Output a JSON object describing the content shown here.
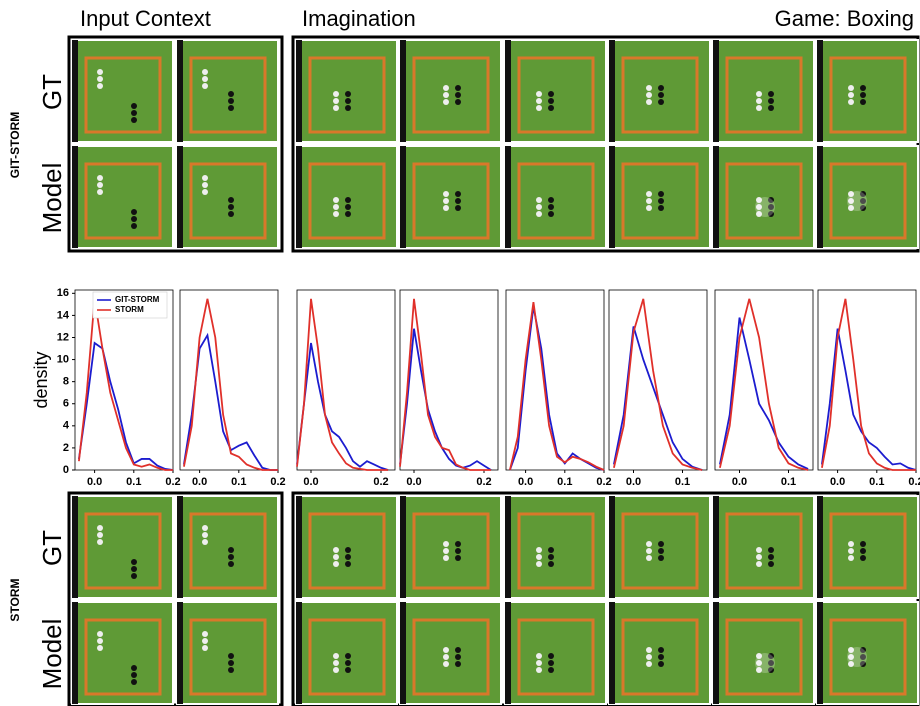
{
  "figure": {
    "input_context": "Input Context",
    "imagination": "Imagination",
    "game": "Game: Boxing",
    "top_method": "GIT-STORM",
    "bottom_method": "STORM",
    "gt": "GT",
    "model": "Model"
  },
  "chart_data": [
    {
      "type": "line",
      "y_label": "density",
      "legend": "upper left",
      "xlim": [
        -0.05,
        0.2
      ],
      "ylim": [
        0,
        16.3
      ],
      "yticks": [
        0,
        2,
        4,
        6,
        8,
        10,
        12,
        14,
        16
      ],
      "xticks": [
        {
          "value": 0,
          "label": "0.0"
        },
        {
          "value": 0.1,
          "label": "0.1"
        },
        {
          "value": 0.2,
          "label": "0.2"
        }
      ],
      "x": [
        -0.04,
        -0.02,
        0,
        0.02,
        0.04,
        0.06,
        0.08,
        0.1,
        0.12,
        0.14,
        0.16,
        0.18,
        0.2
      ],
      "series": [
        {
          "name": "GIT-STORM",
          "color": "#1c1ccf",
          "values": [
            1,
            6,
            11.5,
            11,
            8,
            5.5,
            2.5,
            0.6,
            1,
            1,
            0.4,
            0.1,
            0
          ]
        },
        {
          "name": "STORM",
          "color": "#e0302a",
          "values": [
            0.8,
            7,
            15.5,
            11,
            7,
            4.5,
            2,
            0.5,
            0.3,
            0.5,
            0.2,
            0,
            0
          ]
        }
      ]
    },
    {
      "type": "line",
      "xlim": [
        -0.05,
        0.2
      ],
      "ylim": [
        0,
        16.3
      ],
      "xticks": [
        {
          "value": 0,
          "label": "0.0"
        },
        {
          "value": 0.1,
          "label": "0.1"
        },
        {
          "value": 0.2,
          "label": "0.2"
        }
      ],
      "x": [
        -0.04,
        -0.02,
        0,
        0.02,
        0.04,
        0.06,
        0.08,
        0.1,
        0.12,
        0.14,
        0.16,
        0.18,
        0.2
      ],
      "series": [
        {
          "name": "GIT-STORM",
          "color": "#1c1ccf",
          "values": [
            0.5,
            5,
            11,
            12.2,
            8,
            3.5,
            1.8,
            2.2,
            2.5,
            1.3,
            0.2,
            0,
            0
          ]
        },
        {
          "name": "STORM",
          "color": "#e0302a",
          "values": [
            0.3,
            4,
            12,
            15.5,
            12,
            5,
            1.5,
            1.2,
            0.5,
            0.2,
            0,
            0,
            0
          ]
        }
      ]
    },
    {
      "type": "line",
      "xlim": [
        -0.04,
        0.24
      ],
      "ylim": [
        0,
        16.3
      ],
      "xticks": [
        {
          "value": 0,
          "label": "0.0"
        },
        {
          "value": 0.2,
          "label": "0.2"
        }
      ],
      "x": [
        -0.04,
        -0.02,
        0,
        0.02,
        0.04,
        0.06,
        0.08,
        0.1,
        0.12,
        0.14,
        0.16,
        0.18,
        0.2,
        0.22
      ],
      "series": [
        {
          "name": "GIT-STORM",
          "color": "#1c1ccf",
          "values": [
            0.5,
            6,
            11.5,
            8,
            5,
            3.5,
            3,
            2,
            0.8,
            0.3,
            0.8,
            0.5,
            0.2,
            0
          ]
        },
        {
          "name": "STORM",
          "color": "#e0302a",
          "values": [
            0.3,
            6,
            15.5,
            11,
            5,
            2.5,
            1.5,
            0.6,
            0.2,
            0.1,
            0,
            0,
            0,
            0
          ]
        }
      ]
    },
    {
      "type": "line",
      "xlim": [
        -0.04,
        0.24
      ],
      "ylim": [
        0,
        16.3
      ],
      "xticks": [
        {
          "value": 0,
          "label": "0.0"
        },
        {
          "value": 0.2,
          "label": "0.2"
        }
      ],
      "x": [
        -0.04,
        -0.02,
        0,
        0.02,
        0.04,
        0.06,
        0.08,
        0.1,
        0.12,
        0.14,
        0.16,
        0.18,
        0.2,
        0.22
      ],
      "series": [
        {
          "name": "GIT-STORM",
          "color": "#1c1ccf",
          "values": [
            0.5,
            6,
            12.8,
            9,
            5.5,
            3.5,
            2,
            1,
            0.4,
            0.2,
            0.4,
            0.8,
            0.4,
            0
          ]
        },
        {
          "name": "STORM",
          "color": "#e0302a",
          "values": [
            0.3,
            7,
            15.5,
            10.5,
            5,
            3,
            2,
            1.8,
            0.5,
            0.2,
            0,
            0,
            0,
            0
          ]
        }
      ]
    },
    {
      "type": "line",
      "xlim": [
        -0.05,
        0.2
      ],
      "ylim": [
        0,
        16.3
      ],
      "xticks": [
        {
          "value": 0,
          "label": "0.0"
        },
        {
          "value": 0.1,
          "label": "0.1"
        },
        {
          "value": 0.2,
          "label": "0.2"
        }
      ],
      "x": [
        -0.04,
        -0.02,
        0,
        0.02,
        0.04,
        0.06,
        0.08,
        0.1,
        0.12,
        0.14,
        0.16,
        0.18,
        0.2
      ],
      "series": [
        {
          "name": "GIT-STORM",
          "color": "#1c1ccf",
          "values": [
            0,
            2,
            9,
            14.8,
            11,
            5,
            1.5,
            0.6,
            1.5,
            1,
            0.6,
            0.2,
            0
          ]
        },
        {
          "name": "STORM",
          "color": "#e0302a",
          "values": [
            0,
            3,
            10,
            15.2,
            10,
            4,
            1.2,
            0.7,
            1.2,
            1,
            0.7,
            0.3,
            0
          ]
        }
      ]
    },
    {
      "type": "line",
      "xlim": [
        -0.05,
        0.15
      ],
      "ylim": [
        0,
        16.3
      ],
      "xticks": [
        {
          "value": 0,
          "label": "0.0"
        },
        {
          "value": 0.1,
          "label": "0.1"
        }
      ],
      "x": [
        -0.04,
        -0.02,
        0,
        0.02,
        0.04,
        0.06,
        0.08,
        0.1,
        0.12,
        0.14
      ],
      "series": [
        {
          "name": "GIT-STORM",
          "color": "#1c1ccf",
          "values": [
            0.5,
            5,
            13,
            10,
            7.5,
            5,
            2.5,
            1,
            0.3,
            0
          ]
        },
        {
          "name": "STORM",
          "color": "#e0302a",
          "values": [
            0.2,
            4,
            12.5,
            15.5,
            9,
            4,
            1.5,
            0.5,
            0.2,
            0
          ]
        }
      ]
    },
    {
      "type": "line",
      "xlim": [
        -0.05,
        0.15
      ],
      "ylim": [
        0,
        16.3
      ],
      "xticks": [
        {
          "value": 0,
          "label": "0.0"
        },
        {
          "value": 0.1,
          "label": "0.1"
        }
      ],
      "x": [
        -0.04,
        -0.02,
        0,
        0.02,
        0.04,
        0.06,
        0.08,
        0.1,
        0.12,
        0.14
      ],
      "series": [
        {
          "name": "GIT-STORM",
          "color": "#1c1ccf",
          "values": [
            0.5,
            5,
            13.8,
            10,
            6,
            4.5,
            2.5,
            1.2,
            0.5,
            0.1
          ]
        },
        {
          "name": "STORM",
          "color": "#e0302a",
          "values": [
            0.2,
            4,
            12,
            15.5,
            12,
            6,
            2,
            0.6,
            0.2,
            0
          ]
        }
      ]
    },
    {
      "type": "line",
      "xlim": [
        -0.05,
        0.2
      ],
      "ylim": [
        0,
        16.3
      ],
      "xticks": [
        {
          "value": 0,
          "label": "0.0"
        },
        {
          "value": 0.1,
          "label": "0.1"
        },
        {
          "value": 0.2,
          "label": "0.2"
        }
      ],
      "x": [
        -0.04,
        -0.02,
        0,
        0.02,
        0.04,
        0.06,
        0.08,
        0.1,
        0.12,
        0.14,
        0.16,
        0.18,
        0.2
      ],
      "series": [
        {
          "name": "GIT-STORM",
          "color": "#1c1ccf",
          "values": [
            0.5,
            6,
            12.8,
            9,
            5,
            3.5,
            2.5,
            2,
            1.2,
            0.5,
            0.6,
            0.2,
            0
          ]
        },
        {
          "name": "STORM",
          "color": "#e0302a",
          "values": [
            0.2,
            4,
            12,
            15.5,
            10,
            4,
            1.5,
            0.6,
            0.2,
            0,
            0,
            0,
            0
          ]
        }
      ]
    }
  ]
}
